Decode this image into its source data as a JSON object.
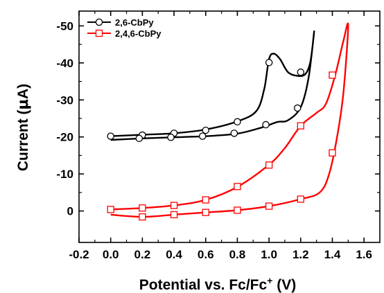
{
  "chart_data": {
    "type": "line",
    "xlabel": "Potential vs. Fc/Fc",
    "xlabel_sup": "+",
    "xlabel_unit": " (V)",
    "ylabel": "Current (",
    "ylabel_mu": "μ",
    "ylabel_unit": "A)",
    "xlim": [
      -0.2,
      1.7
    ],
    "ylim": [
      8.5,
      -54
    ],
    "x_ticks": [
      -0.2,
      0.0,
      0.2,
      0.4,
      0.6,
      0.8,
      1.0,
      1.2,
      1.4,
      1.6
    ],
    "x_tick_labels": [
      "-0.2",
      "0.0",
      "0.2",
      "0.4",
      "0.6",
      "0.8",
      "1.0",
      "1.2",
      "1.4",
      "1.6"
    ],
    "y_ticks": [
      0,
      -10,
      -20,
      -30,
      -40,
      -50
    ],
    "y_tick_labels": [
      "0",
      "-10",
      "-20",
      "-30",
      "-40",
      "-50"
    ],
    "grid": false,
    "legend_position": "top-left",
    "series": [
      {
        "name": "2,6-CbPy",
        "color": "#000000",
        "marker": "circle",
        "line": [
          [
            0.0,
            -19.2
          ],
          [
            0.2,
            -19.6
          ],
          [
            0.4,
            -19.9
          ],
          [
            0.6,
            -20.2
          ],
          [
            0.8,
            -20.9
          ],
          [
            0.95,
            -22.5
          ],
          [
            1.05,
            -24.0
          ],
          [
            1.12,
            -24.5
          ],
          [
            1.2,
            -28.0
          ],
          [
            1.25,
            -36.0
          ],
          [
            1.285,
            -48.5
          ],
          [
            1.262,
            -40.5
          ],
          [
            1.23,
            -37.0
          ],
          [
            1.18,
            -36.5
          ],
          [
            1.12,
            -37.5
          ],
          [
            1.07,
            -41.0
          ],
          [
            1.03,
            -42.5
          ],
          [
            1.0,
            -41.0
          ],
          [
            0.97,
            -33.0
          ],
          [
            0.92,
            -27.0
          ],
          [
            0.8,
            -24.2
          ],
          [
            0.6,
            -22.0
          ],
          [
            0.4,
            -21.0
          ],
          [
            0.2,
            -20.6
          ],
          [
            0.0,
            -20.2
          ]
        ],
        "markers": [
          [
            0.0,
            -20.2
          ],
          [
            0.2,
            -20.5
          ],
          [
            0.4,
            -21.0
          ],
          [
            0.6,
            -21.8
          ],
          [
            0.8,
            -24.1
          ],
          [
            1.0,
            -40.1
          ],
          [
            1.2,
            -37.5
          ],
          [
            0.18,
            -19.6
          ],
          [
            0.38,
            -19.9
          ],
          [
            0.58,
            -20.2
          ],
          [
            0.78,
            -21.0
          ],
          [
            0.98,
            -23.3
          ],
          [
            1.18,
            -27.8
          ]
        ]
      },
      {
        "name": "2,4,6-CbPy",
        "color": "#ff0000",
        "marker": "square",
        "line": [
          [
            0.0,
            -0.4
          ],
          [
            0.2,
            -0.8
          ],
          [
            0.4,
            -1.5
          ],
          [
            0.6,
            -3.0
          ],
          [
            0.8,
            -6.5
          ],
          [
            1.0,
            -12.5
          ],
          [
            1.1,
            -17.0
          ],
          [
            1.2,
            -23.0
          ],
          [
            1.3,
            -26.5
          ],
          [
            1.36,
            -29.0
          ],
          [
            1.42,
            -37.0
          ],
          [
            1.47,
            -46.0
          ],
          [
            1.5,
            -50.0
          ],
          [
            1.47,
            -32.0
          ],
          [
            1.43,
            -20.0
          ],
          [
            1.38,
            -10.0
          ],
          [
            1.32,
            -5.0
          ],
          [
            1.2,
            -3.2
          ],
          [
            1.0,
            -1.3
          ],
          [
            0.8,
            -0.2
          ],
          [
            0.6,
            0.4
          ],
          [
            0.4,
            1.0
          ],
          [
            0.2,
            1.6
          ],
          [
            0.0,
            1.0
          ]
        ],
        "markers": [
          [
            0.0,
            -0.4
          ],
          [
            0.2,
            -0.8
          ],
          [
            0.4,
            -1.5
          ],
          [
            0.6,
            -3.0
          ],
          [
            0.8,
            -6.6
          ],
          [
            1.0,
            -12.4
          ],
          [
            1.2,
            -23.0
          ],
          [
            1.4,
            -36.7
          ],
          [
            0.2,
            1.6
          ],
          [
            0.4,
            1.0
          ],
          [
            0.6,
            0.4
          ],
          [
            0.8,
            -0.2
          ],
          [
            1.0,
            -1.3
          ],
          [
            1.2,
            -3.2
          ],
          [
            1.4,
            -15.7
          ]
        ]
      }
    ]
  }
}
